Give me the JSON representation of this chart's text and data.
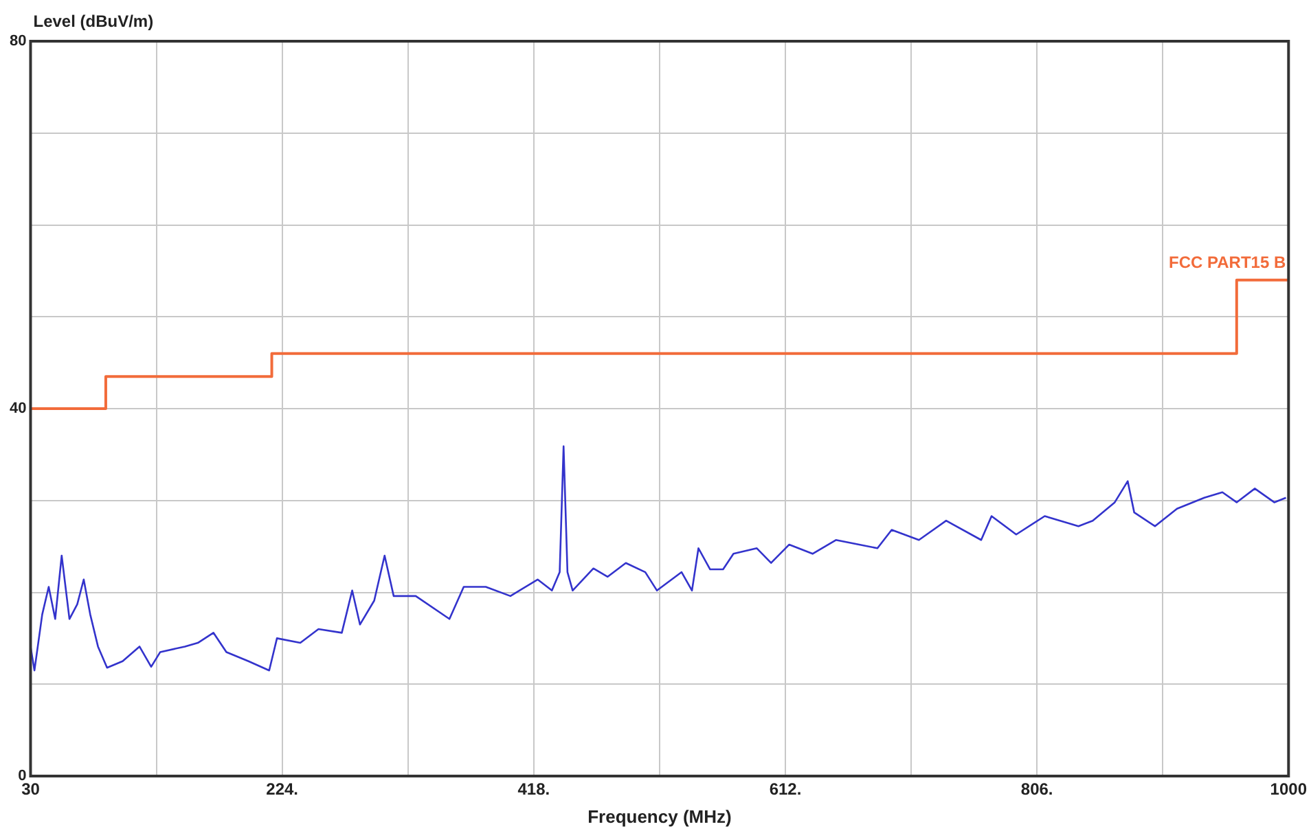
{
  "chart_data": {
    "type": "line",
    "xlabel": "Frequency (MHz)",
    "ylabel": "Level (dBuV/m)",
    "xlim": [
      30,
      1000
    ],
    "ylim": [
      0,
      80
    ],
    "xticks": [
      {
        "value": 30,
        "label": "30"
      },
      {
        "value": 127,
        "label": null
      },
      {
        "value": 224,
        "label": "224."
      },
      {
        "value": 321,
        "label": null
      },
      {
        "value": 418,
        "label": "418."
      },
      {
        "value": 515,
        "label": null
      },
      {
        "value": 612,
        "label": "612."
      },
      {
        "value": 709,
        "label": null
      },
      {
        "value": 806,
        "label": "806."
      },
      {
        "value": 903,
        "label": null
      },
      {
        "value": 1000,
        "label": "1000"
      }
    ],
    "yticks": [
      0,
      {
        "value": 10,
        "label": null
      },
      {
        "value": 20,
        "label": null
      },
      {
        "value": 30,
        "label": null
      },
      40,
      {
        "value": 50,
        "label": null
      },
      {
        "value": 60,
        "label": null
      },
      {
        "value": 70,
        "label": null
      },
      80
    ],
    "grid": true,
    "legend": false,
    "marker": "none",
    "line_style": "solid",
    "series": [
      {
        "name": "FCC PART15 B",
        "type": "step",
        "color": "#f26b3a",
        "x": [
          30,
          88,
          216,
          960,
          1000
        ],
        "values": [
          40,
          43.5,
          46,
          54,
          54
        ]
      },
      {
        "type": "line",
        "color": "#3333cc",
        "x": [
          30,
          33,
          39,
          44,
          49,
          54,
          60,
          66,
          71,
          76,
          82,
          89,
          101,
          114,
          123,
          130,
          149,
          159,
          171,
          181,
          198,
          214,
          220,
          238,
          252,
          270,
          278,
          284,
          295,
          303,
          310,
          327,
          353,
          364,
          381,
          400,
          421,
          432,
          438,
          441,
          444,
          448,
          464,
          475,
          489,
          504,
          513,
          532,
          540,
          545,
          554,
          564,
          572,
          590,
          601,
          615,
          633,
          651,
          669,
          683,
          694,
          715,
          736,
          763,
          771,
          790,
          812,
          838,
          849,
          866,
          876,
          881,
          897,
          914,
          935,
          949,
          960,
          974,
          989,
          998
        ],
        "values": [
          14.1,
          11.5,
          17.6,
          20.6,
          17.1,
          24,
          17.1,
          18.7,
          21.4,
          17.6,
          14.1,
          11.8,
          12.5,
          14.1,
          11.9,
          13.5,
          14.1,
          14.5,
          15.6,
          13.5,
          12.5,
          11.5,
          15,
          14.5,
          16,
          15.6,
          20.2,
          16.5,
          19.1,
          24,
          19.6,
          19.6,
          17.1,
          20.6,
          20.6,
          19.6,
          21.4,
          20.2,
          22.2,
          35.9,
          22.2,
          20.2,
          22.6,
          21.7,
          23.2,
          22.2,
          20.2,
          22.2,
          20.2,
          24.8,
          22.5,
          22.5,
          24.2,
          24.8,
          23.2,
          25.2,
          24.2,
          25.7,
          25.2,
          24.8,
          26.8,
          25.7,
          27.8,
          25.7,
          28.3,
          26.3,
          28.3,
          27.2,
          27.8,
          29.8,
          32.1,
          28.7,
          27.2,
          29.1,
          30.3,
          30.9,
          29.8,
          31.3,
          29.8,
          30.3
        ]
      }
    ]
  }
}
